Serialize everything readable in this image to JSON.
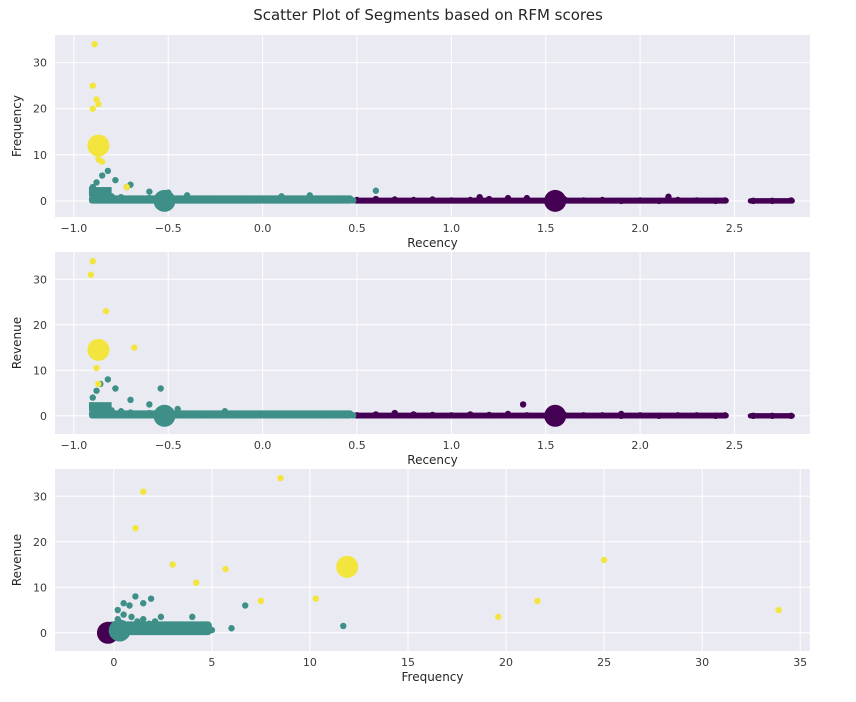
{
  "title": "Scatter Plot of Segments based on RFM scores",
  "colors": {
    "cluster_0": "#440154",
    "cluster_1": "#3e8f87",
    "cluster_2": "#f3e53e",
    "axes_bg": "#eaeaf2",
    "grid": "#ffffff"
  },
  "chart_data": [
    {
      "type": "scatter",
      "xlabel": "Recency",
      "ylabel": "Frequency",
      "xlim": [
        -1.1,
        2.9
      ],
      "ylim": [
        -3.5,
        36
      ],
      "xticks": [
        -1.0,
        -0.5,
        0.0,
        0.5,
        1.0,
        1.5,
        2.0,
        2.5
      ],
      "xtick_labels": [
        "−1.0",
        "−0.5",
        "0.0",
        "0.5",
        "1.0",
        "1.5",
        "2.0",
        "2.5"
      ],
      "yticks": [
        0,
        10,
        20,
        30
      ],
      "ytick_labels": [
        "0",
        "10",
        "20",
        "30"
      ],
      "grid": true,
      "series": [
        {
          "cluster": 0,
          "color": "#440154",
          "x": [
            0.5,
            0.6,
            0.7,
            0.8,
            0.9,
            1.0,
            1.1,
            1.2,
            1.3,
            1.4,
            1.5,
            1.6,
            1.7,
            1.8,
            1.9,
            2.0,
            2.1,
            2.2,
            2.3,
            2.4,
            2.45,
            2.6,
            2.7,
            2.8,
            1.15,
            1.4,
            2.15
          ],
          "y": [
            0.2,
            0.4,
            0.3,
            0.2,
            0.3,
            0.1,
            0.2,
            0.4,
            0.6,
            0.1,
            0.0,
            0.3,
            0.1,
            0.2,
            0.0,
            0.1,
            0.0,
            0.2,
            0.1,
            0.0,
            0.1,
            0.0,
            0.0,
            0.1,
            0.8,
            0.6,
            0.9
          ]
        },
        {
          "cluster": 1,
          "color": "#3e8f87",
          "x": [
            -0.9,
            -0.88,
            -0.85,
            -0.82,
            -0.8,
            -0.75,
            -0.7,
            -0.65,
            -0.6,
            -0.55,
            -0.5,
            -0.45,
            -0.4,
            -0.3,
            -0.2,
            -0.1,
            0.0,
            0.1,
            0.2,
            0.3,
            0.4,
            0.48,
            -0.9,
            -0.88,
            -0.85,
            -0.82,
            -0.78,
            -0.7,
            -0.6,
            -0.5,
            -0.4,
            -0.72,
            0.1,
            0.25,
            0.6
          ],
          "y": [
            0.5,
            1.0,
            1.5,
            2.0,
            1.0,
            0.8,
            0.5,
            0.4,
            0.6,
            0.3,
            0.2,
            0.5,
            0.3,
            0.4,
            0.2,
            0.5,
            0.3,
            0.2,
            0.3,
            0.2,
            0.1,
            0.1,
            3.0,
            4.0,
            5.5,
            6.5,
            4.5,
            3.5,
            2.0,
            1.8,
            1.2,
            3.0,
            1.0,
            1.2,
            2.2
          ]
        },
        {
          "cluster": 2,
          "color": "#f3e53e",
          "x": [
            -0.89,
            -0.9,
            -0.88,
            -0.87,
            -0.9,
            -0.87,
            -0.85,
            -0.72
          ],
          "y": [
            34,
            25,
            22,
            21,
            20,
            9,
            8.5,
            3
          ]
        }
      ],
      "centroids": [
        {
          "cluster": 0,
          "x": 1.55,
          "y": 0.0,
          "color": "#440154"
        },
        {
          "cluster": 1,
          "x": -0.52,
          "y": 0.0,
          "color": "#3e8f87"
        },
        {
          "cluster": 2,
          "x": -0.87,
          "y": 12.0,
          "color": "#f3e53e"
        }
      ]
    },
    {
      "type": "scatter",
      "xlabel": "Recency",
      "ylabel": "Revenue",
      "xlim": [
        -1.1,
        2.9
      ],
      "ylim": [
        -4,
        36
      ],
      "xticks": [
        -1.0,
        -0.5,
        0.0,
        0.5,
        1.0,
        1.5,
        2.0,
        2.5
      ],
      "xtick_labels": [
        "−1.0",
        "−0.5",
        "0.0",
        "0.5",
        "1.0",
        "1.5",
        "2.0",
        "2.5"
      ],
      "yticks": [
        0,
        10,
        20,
        30
      ],
      "ytick_labels": [
        "0",
        "10",
        "20",
        "30"
      ],
      "grid": true,
      "series": [
        {
          "cluster": 0,
          "color": "#440154",
          "x": [
            0.5,
            0.6,
            0.7,
            0.8,
            0.9,
            1.0,
            1.1,
            1.2,
            1.3,
            1.4,
            1.5,
            1.6,
            1.7,
            1.8,
            1.9,
            2.0,
            2.1,
            2.2,
            2.3,
            2.4,
            2.45,
            2.6,
            2.7,
            2.8,
            1.38,
            0.7,
            1.9
          ],
          "y": [
            0.1,
            0.3,
            0.2,
            0.3,
            0.2,
            0.1,
            0.3,
            0.2,
            0.4,
            0.1,
            0.0,
            0.2,
            0.1,
            0.1,
            0.0,
            0.1,
            0.0,
            0.1,
            0.1,
            0.0,
            0.1,
            0.0,
            0.0,
            0.0,
            2.5,
            0.6,
            0.4
          ]
        },
        {
          "cluster": 1,
          "color": "#3e8f87",
          "x": [
            -0.9,
            -0.88,
            -0.85,
            -0.8,
            -0.75,
            -0.7,
            -0.65,
            -0.6,
            -0.55,
            -0.5,
            -0.45,
            -0.4,
            -0.3,
            -0.2,
            -0.1,
            0.0,
            0.1,
            0.2,
            0.3,
            0.4,
            0.48,
            -0.9,
            -0.88,
            -0.86,
            -0.82,
            -0.78,
            -0.7,
            -0.54,
            -0.6,
            -0.45,
            -0.2
          ],
          "y": [
            0.5,
            1.0,
            2.0,
            1.2,
            1.0,
            0.7,
            0.5,
            0.6,
            0.4,
            0.3,
            0.5,
            0.4,
            0.5,
            0.3,
            0.4,
            0.3,
            0.2,
            0.4,
            0.2,
            0.1,
            0.1,
            4.0,
            5.5,
            7.0,
            8.0,
            6.0,
            3.5,
            6.0,
            2.5,
            1.5,
            1.0
          ]
        },
        {
          "cluster": 2,
          "color": "#f3e53e",
          "x": [
            -0.9,
            -0.91,
            -0.83,
            -0.68,
            -0.88,
            -0.87
          ],
          "y": [
            34,
            31,
            23,
            15,
            10.5,
            7
          ]
        }
      ],
      "centroids": [
        {
          "cluster": 0,
          "x": 1.55,
          "y": 0.0,
          "color": "#440154"
        },
        {
          "cluster": 1,
          "x": -0.52,
          "y": 0.0,
          "color": "#3e8f87"
        },
        {
          "cluster": 2,
          "x": -0.87,
          "y": 14.5,
          "color": "#f3e53e"
        }
      ]
    },
    {
      "type": "scatter",
      "xlabel": "Frequency",
      "ylabel": "Revenue",
      "xlim": [
        -3,
        35.5
      ],
      "ylim": [
        -4,
        36
      ],
      "xticks": [
        0,
        5,
        10,
        15,
        20,
        25,
        30,
        35
      ],
      "xtick_labels": [
        "0",
        "5",
        "10",
        "15",
        "20",
        "25",
        "30",
        "35"
      ],
      "yticks": [
        0,
        10,
        20,
        30
      ],
      "ytick_labels": [
        "0",
        "10",
        "20",
        "30"
      ],
      "grid": true,
      "series": [
        {
          "cluster": 0,
          "color": "#440154",
          "x": [
            -0.3,
            -0.2,
            0.0,
            0.1,
            0.2
          ],
          "y": [
            0.0,
            0.3,
            0.1,
            0.2,
            0.0
          ]
        },
        {
          "cluster": 1,
          "color": "#3e8f87",
          "x": [
            0,
            0.3,
            0.6,
            1.0,
            1.3,
            1.6,
            2.0,
            2.3,
            2.6,
            3.0,
            3.3,
            3.6,
            4.0,
            4.3,
            4.6,
            5.0,
            0.2,
            0.5,
            0.9,
            1.2,
            1.5,
            1.8,
            2.1,
            0.5,
            1.1,
            1.5,
            1.9,
            2.4,
            0.2,
            0.8,
            4.0,
            4.5,
            6.0,
            6.7,
            11.7,
            2.8,
            3.5
          ],
          "y": [
            0.5,
            1.0,
            1.5,
            1.2,
            1.0,
            1.3,
            0.8,
            1.0,
            0.6,
            0.8,
            0.7,
            1.2,
            0.6,
            0.9,
            0.5,
            0.6,
            3.0,
            4.0,
            3.5,
            2.5,
            3.0,
            2.0,
            2.5,
            6.5,
            8.0,
            6.5,
            7.5,
            3.5,
            5.0,
            6.0,
            3.5,
            1.5,
            1.0,
            6.0,
            1.5,
            1.0,
            0.5
          ]
        },
        {
          "cluster": 2,
          "color": "#f3e53e",
          "x": [
            8.5,
            1.5,
            1.1,
            3.0,
            4.2,
            5.7,
            7.5,
            10.3,
            19.6,
            21.6,
            25.0,
            33.9
          ],
          "y": [
            34,
            31,
            23,
            15,
            11,
            14,
            7,
            7.5,
            3.5,
            7,
            16,
            5
          ]
        }
      ],
      "centroids": [
        {
          "cluster": 0,
          "x": -0.3,
          "y": 0.0,
          "color": "#440154"
        },
        {
          "cluster": 1,
          "x": 0.3,
          "y": 0.5,
          "color": "#3e8f87"
        },
        {
          "cluster": 2,
          "x": 11.9,
          "y": 14.5,
          "color": "#f3e53e"
        }
      ]
    }
  ]
}
